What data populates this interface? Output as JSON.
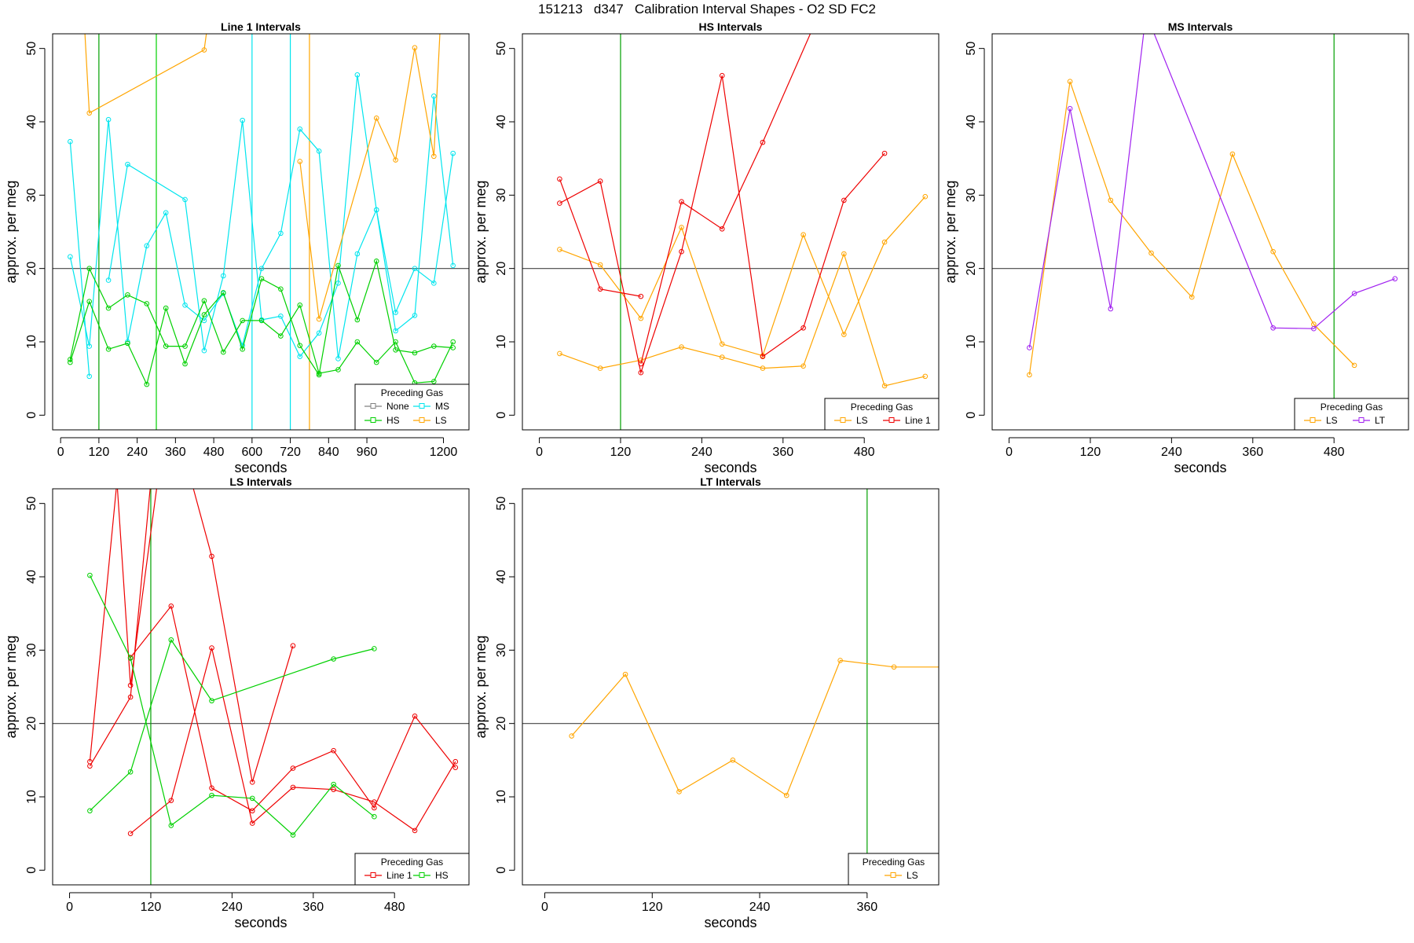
{
  "figure": {
    "title": "151213   d347   Calibration Interval Shapes - O2 SD FC2"
  },
  "colors": {
    "None": "#808080",
    "MS": "#00e5ee",
    "HS": "#00d000",
    "LS": "#ffa500",
    "Line 1": "#ee0000",
    "LT": "#a020f0",
    "vline": "#00a000",
    "hline": "#444444"
  },
  "chart_data": [
    {
      "type": "line",
      "title": "Line 1 Intervals",
      "xlabel": "seconds",
      "ylabel": "approx. per meg",
      "xlim": [
        -25,
        1280
      ],
      "ylim": [
        -2,
        52
      ],
      "xticks": [
        0,
        120,
        240,
        360,
        480,
        600,
        720,
        840,
        960,
        1200
      ],
      "yticks": [
        0,
        10,
        20,
        30,
        40,
        50
      ],
      "hline": 20,
      "vlines": [
        {
          "x": 120,
          "color": "#00a000"
        },
        {
          "x": 300,
          "color": "#00d000"
        },
        {
          "x": 600,
          "color": "#00e5ee"
        },
        {
          "x": 720,
          "color": "#00e5ee"
        },
        {
          "x": 780,
          "color": "#ffa500"
        }
      ],
      "legend": {
        "title": "Preceding Gas",
        "entries": [
          "None",
          "MS",
          "HS",
          "LS"
        ],
        "ncol": 2,
        "position": "bottom-right"
      },
      "series": [
        {
          "name": "MS",
          "points": [
            [
              30,
              37.3
            ],
            [
              90,
              5.3
            ]
          ]
        },
        {
          "name": "MS",
          "points": [
            [
              30,
              21.6
            ],
            [
              90,
              9.4
            ],
            [
              150,
              40.3
            ],
            [
              210,
              10.0
            ],
            [
              270,
              23.1
            ],
            [
              330,
              27.6
            ],
            [
              390,
              15.0
            ],
            [
              450,
              12.9
            ],
            [
              510,
              16.6
            ],
            [
              570,
              9.5
            ],
            [
              630,
              20.0
            ],
            [
              690,
              24.8
            ],
            [
              750,
              39.0
            ],
            [
              810,
              36.0
            ],
            [
              870,
              7.7
            ],
            [
              930,
              22.0
            ],
            [
              990,
              28.0
            ],
            [
              1050,
              14.0
            ],
            [
              1110,
              20.0
            ],
            [
              1170,
              18.0
            ],
            [
              1230,
              35.7
            ]
          ]
        },
        {
          "name": "MS",
          "points": [
            [
              150,
              18.4
            ],
            [
              210,
              34.2
            ],
            [
              390,
              29.4
            ],
            [
              450,
              8.8
            ],
            [
              510,
              19.0
            ],
            [
              570,
              40.2
            ],
            [
              630,
              13.0
            ],
            [
              690,
              13.5
            ],
            [
              750,
              8.0
            ],
            [
              810,
              11.2
            ],
            [
              870,
              18.0
            ],
            [
              930,
              46.4
            ],
            [
              990,
              28.0
            ],
            [
              1050,
              11.5
            ],
            [
              1110,
              13.6
            ],
            [
              1170,
              43.5
            ],
            [
              1230,
              20.4
            ]
          ]
        },
        {
          "name": "HS",
          "points": [
            [
              30,
              7.6
            ],
            [
              90,
              20.0
            ],
            [
              150,
              14.6
            ],
            [
              210,
              16.4
            ],
            [
              270,
              15.2
            ],
            [
              330,
              9.4
            ],
            [
              390,
              9.4
            ],
            [
              450,
              15.6
            ],
            [
              510,
              8.6
            ],
            [
              570,
              12.9
            ],
            [
              630,
              12.9
            ],
            [
              690,
              10.8
            ],
            [
              750,
              15.0
            ],
            [
              810,
              5.7
            ],
            [
              870,
              6.2
            ],
            [
              930,
              10.0
            ],
            [
              990,
              7.2
            ],
            [
              1050,
              10.0
            ],
            [
              1110,
              4.4
            ],
            [
              1170,
              4.6
            ],
            [
              1230,
              10.0
            ]
          ]
        },
        {
          "name": "HS",
          "points": [
            [
              30,
              7.2
            ],
            [
              90,
              15.5
            ],
            [
              150,
              9.0
            ],
            [
              210,
              9.8
            ],
            [
              270,
              4.2
            ],
            [
              330,
              14.6
            ],
            [
              390,
              7.0
            ],
            [
              450,
              13.7
            ],
            [
              510,
              16.7
            ],
            [
              570,
              9.0
            ],
            [
              630,
              18.6
            ],
            [
              690,
              17.2
            ],
            [
              750,
              9.5
            ],
            [
              810,
              5.5
            ],
            [
              870,
              20.4
            ],
            [
              930,
              13.0
            ],
            [
              990,
              21.0
            ],
            [
              1050,
              8.9
            ],
            [
              1110,
              8.5
            ],
            [
              1170,
              9.4
            ],
            [
              1230,
              9.2
            ]
          ]
        },
        {
          "name": "LS",
          "points": [
            [
              75,
              53
            ],
            [
              90,
              41.2
            ],
            [
              450,
              49.8
            ],
            [
              460,
              53
            ]
          ]
        },
        {
          "name": "LS",
          "points": [
            [
              750,
              34.6
            ],
            [
              810,
              13.1
            ],
            [
              990,
              40.5
            ],
            [
              1050,
              34.8
            ],
            [
              1110,
              50.1
            ],
            [
              1170,
              35.3
            ],
            [
              1190,
              53
            ]
          ]
        }
      ]
    },
    {
      "type": "line",
      "title": "HS Intervals",
      "xlabel": "seconds",
      "ylabel": "approx. per meg",
      "xlim": [
        -25,
        590
      ],
      "ylim": [
        -2,
        52
      ],
      "xticks": [
        0,
        120,
        240,
        360,
        480
      ],
      "yticks": [
        0,
        10,
        20,
        30,
        40,
        50
      ],
      "hline": 20,
      "vlines": [
        {
          "x": 120,
          "color": "#00a000"
        }
      ],
      "legend": {
        "title": "Preceding Gas",
        "entries": [
          "LS",
          "Line 1"
        ],
        "ncol": 2,
        "position": "bottom-right"
      },
      "series": [
        {
          "name": "LS",
          "points": [
            [
              30,
              22.6
            ],
            [
              90,
              20.5
            ],
            [
              150,
              13.2
            ],
            [
              210,
              25.6
            ],
            [
              270,
              9.7
            ],
            [
              330,
              8.1
            ],
            [
              390,
              24.6
            ],
            [
              450,
              11.0
            ],
            [
              510,
              23.6
            ],
            [
              570,
              29.8
            ]
          ]
        },
        {
          "name": "LS",
          "points": [
            [
              30,
              8.4
            ],
            [
              90,
              6.4
            ],
            [
              150,
              7.5
            ],
            [
              210,
              9.3
            ],
            [
              270,
              7.9
            ],
            [
              330,
              6.4
            ],
            [
              390,
              6.7
            ],
            [
              450,
              22.0
            ],
            [
              510,
              4.0
            ],
            [
              570,
              5.3
            ]
          ]
        },
        {
          "name": "Line 1",
          "points": [
            [
              30,
              32.2
            ],
            [
              90,
              17.2
            ],
            [
              150,
              16.2
            ]
          ]
        },
        {
          "name": "Line 1",
          "points": [
            [
              30,
              28.9
            ],
            [
              90,
              31.9
            ],
            [
              150,
              5.8
            ],
            [
              210,
              22.3
            ],
            [
              270,
              46.3
            ],
            [
              330,
              8.0
            ],
            [
              390,
              11.9
            ],
            [
              450,
              29.3
            ],
            [
              510,
              35.7
            ]
          ]
        },
        {
          "name": "Line 1",
          "points": [
            [
              150,
              7.0
            ],
            [
              210,
              29.1
            ],
            [
              270,
              25.4
            ],
            [
              330,
              37.2
            ],
            [
              405,
              53
            ]
          ]
        }
      ]
    },
    {
      "type": "line",
      "title": "MS Intervals",
      "xlabel": "seconds",
      "ylabel": "approx. per meg",
      "xlim": [
        -25,
        590
      ],
      "ylim": [
        -2,
        52
      ],
      "xticks": [
        0,
        120,
        240,
        360,
        480
      ],
      "yticks": [
        0,
        10,
        20,
        30,
        40,
        50
      ],
      "hline": 20,
      "vlines": [
        {
          "x": 480,
          "color": "#00a000"
        }
      ],
      "legend": {
        "title": "Preceding Gas",
        "entries": [
          "LS",
          "LT"
        ],
        "ncol": 2,
        "position": "bottom-right"
      },
      "series": [
        {
          "name": "LS",
          "points": [
            [
              30,
              5.5
            ],
            [
              90,
              45.5
            ],
            [
              150,
              29.3
            ],
            [
              210,
              22.1
            ],
            [
              270,
              16.1
            ],
            [
              330,
              35.6
            ],
            [
              390,
              22.3
            ],
            [
              450,
              12.4
            ],
            [
              510,
              6.8
            ]
          ]
        },
        {
          "name": "LT",
          "points": [
            [
              30,
              9.2
            ],
            [
              90,
              41.8
            ],
            [
              150,
              14.5
            ],
            [
              200,
              53
            ],
            [
              210,
              53
            ],
            [
              390,
              11.9
            ],
            [
              450,
              11.8
            ],
            [
              510,
              16.6
            ],
            [
              570,
              18.6
            ]
          ]
        }
      ]
    },
    {
      "type": "line",
      "title": "LS Intervals",
      "xlabel": "seconds",
      "ylabel": "approx. per meg",
      "xlim": [
        -25,
        590
      ],
      "ylim": [
        -2,
        52
      ],
      "xticks": [
        0,
        120,
        240,
        360,
        480
      ],
      "yticks": [
        0,
        10,
        20,
        30,
        40,
        50
      ],
      "hline": 20,
      "vlines": [
        {
          "x": 120,
          "color": "#00a000"
        }
      ],
      "legend": {
        "title": "Preceding Gas",
        "entries": [
          "Line 1",
          "HS"
        ],
        "ncol": 2,
        "position": "bottom-right"
      },
      "series": [
        {
          "name": "Line 1",
          "points": [
            [
              30,
              14.8
            ],
            [
              70,
              53
            ]
          ]
        },
        {
          "name": "Line 1",
          "points": [
            [
              30,
              14.2
            ],
            [
              90,
              23.6
            ],
            [
              120,
              53
            ]
          ]
        },
        {
          "name": "Line 1",
          "points": [
            [
              70,
              53
            ],
            [
              90,
              25.2
            ],
            [
              130,
              53
            ]
          ]
        },
        {
          "name": "Line 1",
          "points": [
            [
              90,
              5.0
            ],
            [
              150,
              9.5
            ],
            [
              210,
              30.3
            ],
            [
              270,
              6.4
            ],
            [
              330,
              11.3
            ],
            [
              390,
              11.0
            ],
            [
              450,
              9.3
            ],
            [
              510,
              5.4
            ],
            [
              570,
              14.8
            ]
          ]
        },
        {
          "name": "Line 1",
          "points": [
            [
              90,
              29.0
            ],
            [
              150,
              36.0
            ],
            [
              210,
              11.2
            ],
            [
              270,
              8.1
            ],
            [
              330,
              13.9
            ],
            [
              390,
              16.3
            ],
            [
              450,
              8.5
            ],
            [
              510,
              21.0
            ],
            [
              570,
              14.0
            ]
          ]
        },
        {
          "name": "Line 1",
          "points": [
            [
              180,
              53
            ],
            [
              210,
              42.8
            ],
            [
              270,
              12.0
            ],
            [
              330,
              30.6
            ]
          ]
        },
        {
          "name": "HS",
          "points": [
            [
              30,
              40.2
            ],
            [
              90,
              28.9
            ],
            [
              150,
              6.1
            ],
            [
              210,
              10.2
            ],
            [
              270,
              9.8
            ],
            [
              330,
              4.8
            ],
            [
              390,
              11.7
            ],
            [
              450,
              7.3
            ]
          ]
        },
        {
          "name": "HS",
          "points": [
            [
              30,
              8.1
            ],
            [
              90,
              13.4
            ],
            [
              150,
              31.4
            ],
            [
              210,
              23.1
            ],
            [
              390,
              28.8
            ],
            [
              450,
              30.2
            ]
          ]
        }
      ]
    },
    {
      "type": "line",
      "title": "LT Intervals",
      "xlabel": "seconds",
      "ylabel": "approx. per meg",
      "xlim": [
        -25,
        440
      ],
      "ylim": [
        -2,
        52
      ],
      "xticks": [
        0,
        120,
        240,
        360
      ],
      "yticks": [
        0,
        10,
        20,
        30,
        40,
        50
      ],
      "hline": 20,
      "vlines": [
        {
          "x": 360,
          "color": "#00a000"
        }
      ],
      "legend": {
        "title": "Preceding Gas",
        "entries": [
          "LS"
        ],
        "ncol": 1,
        "position": "bottom-right"
      },
      "series": [
        {
          "name": "LS",
          "points": [
            [
              30,
              18.3
            ],
            [
              90,
              26.7
            ],
            [
              150,
              10.7
            ],
            [
              210,
              15.0
            ],
            [
              270,
              10.2
            ],
            [
              330,
              28.6
            ],
            [
              390,
              27.7
            ],
            [
              450,
              27.7
            ]
          ]
        }
      ]
    }
  ]
}
